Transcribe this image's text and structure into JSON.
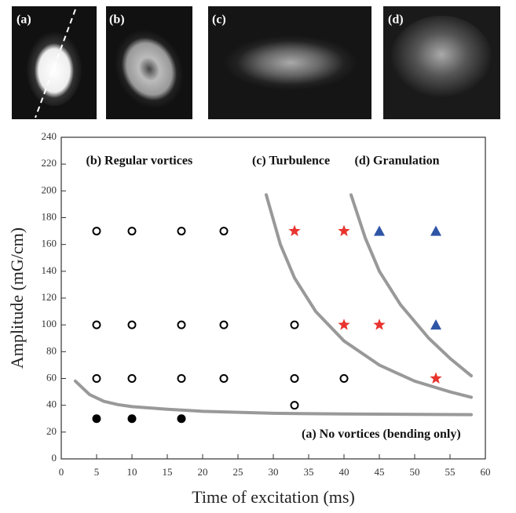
{
  "panels": [
    {
      "label": "(a)"
    },
    {
      "label": "(b)"
    },
    {
      "label": "(c)"
    },
    {
      "label": "(d)"
    }
  ],
  "chart_data": {
    "type": "scatter",
    "xlabel": "Time of excitation (ms)",
    "ylabel": "Amplitude (mG/cm)",
    "xlim": [
      0,
      60
    ],
    "ylim": [
      0,
      240
    ],
    "xticks": [
      0,
      5,
      10,
      15,
      20,
      25,
      30,
      35,
      40,
      45,
      50,
      55,
      60
    ],
    "yticks": [
      0,
      20,
      40,
      60,
      80,
      100,
      120,
      140,
      160,
      180,
      200,
      220,
      240
    ],
    "series": [
      {
        "name": "(a) No vortices (bending only)",
        "marker": "filled-circle",
        "color": "#000000",
        "x": [
          5,
          10,
          17
        ],
        "values": [
          30,
          30,
          30
        ]
      },
      {
        "name": "(b) Regular vortices",
        "marker": "open-circle",
        "color": "#000000",
        "x": [
          5,
          10,
          17,
          23,
          5,
          10,
          17,
          23,
          5,
          10,
          17,
          23,
          33,
          33,
          33,
          40
        ],
        "values": [
          170,
          170,
          170,
          170,
          100,
          100,
          100,
          100,
          60,
          60,
          60,
          60,
          100,
          60,
          40,
          60
        ]
      },
      {
        "name": "(c) Turbulence",
        "marker": "star",
        "color": "#e8332f",
        "x": [
          33,
          40,
          40,
          45,
          53
        ],
        "values": [
          170,
          170,
          100,
          100,
          60
        ]
      },
      {
        "name": "(d) Granulation",
        "marker": "triangle",
        "color": "#2f55a6",
        "x": [
          45,
          53,
          53
        ],
        "values": [
          170,
          170,
          100
        ]
      },
      {
        "marker": "curve",
        "color": "#999999",
        "x": [
          2,
          4,
          6,
          8,
          10,
          15,
          20,
          30,
          40,
          50,
          58
        ],
        "values": [
          58,
          48,
          43,
          40.5,
          39,
          37,
          35.5,
          34,
          33.5,
          33.2,
          33
        ]
      },
      {
        "marker": "curve",
        "color": "#999999",
        "x": [
          29,
          31,
          33,
          36,
          40,
          45,
          50,
          55,
          58
        ],
        "values": [
          197,
          160,
          135,
          110,
          88,
          70,
          58,
          50,
          46
        ]
      },
      {
        "marker": "curve",
        "color": "#999999",
        "x": [
          41,
          43,
          45,
          48,
          52,
          55,
          58
        ],
        "values": [
          197,
          165,
          140,
          115,
          90,
          75,
          62
        ]
      }
    ]
  }
}
